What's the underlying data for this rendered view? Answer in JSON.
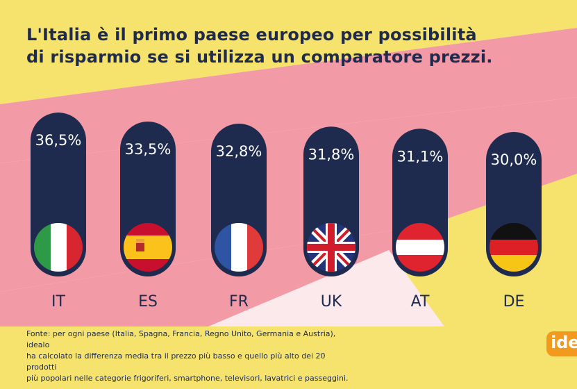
{
  "title": {
    "line1": "L'Italia è il primo paese europeo per possibilità",
    "line2": "di risparmio se si utilizza un comparatore prezzi."
  },
  "chart_data": {
    "type": "bar",
    "categories": [
      "IT",
      "ES",
      "FR",
      "UK",
      "AT",
      "DE"
    ],
    "values": [
      36.5,
      33.5,
      32.8,
      31.8,
      31.1,
      30.0
    ],
    "value_labels": [
      "36,5%",
      "33,5%",
      "32,8%",
      "31,8%",
      "31,1%",
      "30,0%"
    ],
    "flags": [
      "flag-italy",
      "flag-spain",
      "flag-france",
      "flag-uk",
      "flag-austria",
      "flag-germany"
    ],
    "unit": "%",
    "title": "L'Italia è il primo paese europeo per possibilità di risparmio se si utilizza un comparatore prezzi.",
    "xlabel": "",
    "ylabel": "",
    "ylim": [
      0,
      40
    ]
  },
  "footnote": {
    "line1": "Fonte: per ogni paese (Italia, Spagna, Francia, Regno Unito, Germania e Austria), idealo",
    "line2": "ha calcolato la differenza media tra il prezzo più basso e quello più alto dei 20 prodotti",
    "line3": "più popolari nelle categorie frigoriferi, smartphone, televisori, lavatrici e passeggini."
  },
  "brand": {
    "label": "ide"
  },
  "colors": {
    "navy": "#1e2a4e",
    "yellow": "#f6e36e",
    "pink": "#f29aa6",
    "orange": "#f29a1d"
  }
}
